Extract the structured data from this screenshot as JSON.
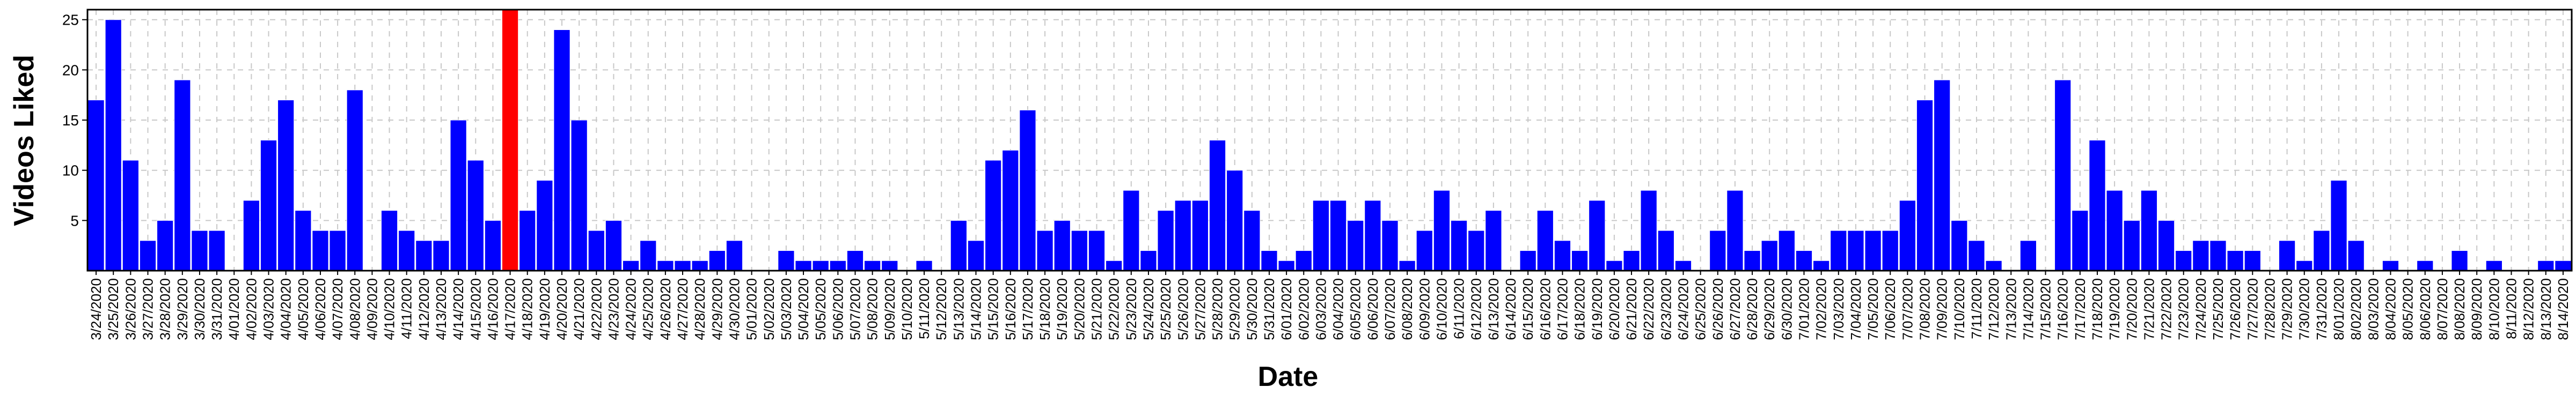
{
  "chart_data": {
    "type": "bar",
    "xlabel": "Date",
    "ylabel": "Videos Liked",
    "categories": [
      "3/24/2020",
      "3/25/2020",
      "3/26/2020",
      "3/27/2020",
      "3/28/2020",
      "3/29/2020",
      "3/30/2020",
      "3/31/2020",
      "4/01/2020",
      "4/02/2020",
      "4/03/2020",
      "4/04/2020",
      "4/05/2020",
      "4/06/2020",
      "4/07/2020",
      "4/08/2020",
      "4/09/2020",
      "4/10/2020",
      "4/11/2020",
      "4/12/2020",
      "4/13/2020",
      "4/14/2020",
      "4/15/2020",
      "4/16/2020",
      "4/17/2020",
      "4/18/2020",
      "4/19/2020",
      "4/20/2020",
      "4/21/2020",
      "4/22/2020",
      "4/23/2020",
      "4/24/2020",
      "4/25/2020",
      "4/26/2020",
      "4/27/2020",
      "4/28/2020",
      "4/29/2020",
      "4/30/2020",
      "5/01/2020",
      "5/02/2020",
      "5/03/2020",
      "5/04/2020",
      "5/05/2020",
      "5/06/2020",
      "5/07/2020",
      "5/08/2020",
      "5/09/2020",
      "5/10/2020",
      "5/11/2020",
      "5/12/2020",
      "5/13/2020",
      "5/14/2020",
      "5/15/2020",
      "5/16/2020",
      "5/17/2020",
      "5/18/2020",
      "5/19/2020",
      "5/20/2020",
      "5/21/2020",
      "5/22/2020",
      "5/23/2020",
      "5/24/2020",
      "5/25/2020",
      "5/26/2020",
      "5/27/2020",
      "5/28/2020",
      "5/29/2020",
      "5/30/2020",
      "5/31/2020",
      "6/01/2020",
      "6/02/2020",
      "6/03/2020",
      "6/04/2020",
      "6/05/2020",
      "6/06/2020",
      "6/07/2020",
      "6/08/2020",
      "6/09/2020",
      "6/10/2020",
      "6/11/2020",
      "6/12/2020",
      "6/13/2020",
      "6/14/2020",
      "6/15/2020",
      "6/16/2020",
      "6/17/2020",
      "6/18/2020",
      "6/19/2020",
      "6/20/2020",
      "6/21/2020",
      "6/22/2020",
      "6/23/2020",
      "6/24/2020",
      "6/25/2020",
      "6/26/2020",
      "6/27/2020",
      "6/28/2020",
      "6/29/2020",
      "6/30/2020",
      "7/01/2020",
      "7/02/2020",
      "7/03/2020",
      "7/04/2020",
      "7/05/2020",
      "7/06/2020",
      "7/07/2020",
      "7/08/2020",
      "7/09/2020",
      "7/10/2020",
      "7/11/2020",
      "7/12/2020",
      "7/13/2020",
      "7/14/2020",
      "7/15/2020",
      "7/16/2020",
      "7/17/2020",
      "7/18/2020",
      "7/19/2020",
      "7/20/2020",
      "7/21/2020",
      "7/22/2020",
      "7/23/2020",
      "7/24/2020",
      "7/25/2020",
      "7/26/2020",
      "7/27/2020",
      "7/28/2020",
      "7/29/2020",
      "7/30/2020",
      "7/31/2020",
      "8/01/2020",
      "8/02/2020",
      "8/03/2020",
      "8/04/2020",
      "8/05/2020",
      "8/06/2020",
      "8/07/2020",
      "8/08/2020",
      "8/09/2020",
      "8/10/2020",
      "8/11/2020",
      "8/12/2020",
      "8/13/2020",
      "8/14/2020"
    ],
    "values": [
      17,
      25,
      11,
      3,
      5,
      19,
      4,
      4,
      0,
      7,
      13,
      17,
      6,
      4,
      4,
      18,
      0,
      6,
      4,
      3,
      3,
      15,
      11,
      5,
      26,
      6,
      9,
      24,
      15,
      4,
      5,
      1,
      3,
      1,
      1,
      1,
      2,
      3,
      0,
      0,
      2,
      1,
      1,
      1,
      2,
      1,
      1,
      0,
      1,
      0,
      5,
      3,
      11,
      12,
      16,
      4,
      5,
      4,
      4,
      1,
      8,
      2,
      6,
      7,
      7,
      13,
      10,
      6,
      2,
      1,
      2,
      7,
      7,
      5,
      7,
      5,
      1,
      4,
      8,
      5,
      4,
      6,
      0,
      2,
      6,
      3,
      2,
      7,
      1,
      2,
      8,
      4,
      1,
      0,
      4,
      8,
      2,
      3,
      4,
      2,
      1,
      4,
      4,
      4,
      4,
      7,
      17,
      19,
      5,
      3,
      1,
      0,
      3,
      0,
      19,
      6,
      13,
      8,
      5,
      8,
      5,
      2,
      3,
      3,
      2,
      2,
      0,
      3,
      1,
      4,
      9,
      3,
      0,
      1,
      0,
      1,
      0,
      2,
      0,
      1,
      0,
      0,
      1,
      1
    ],
    "color": "#0000ff",
    "highlight": "4/17/2020",
    "highlight_color": "#ff0000",
    "ylim": [
      0,
      26
    ],
    "yticks": [
      5,
      10,
      15,
      20,
      25
    ],
    "grid": true
  }
}
